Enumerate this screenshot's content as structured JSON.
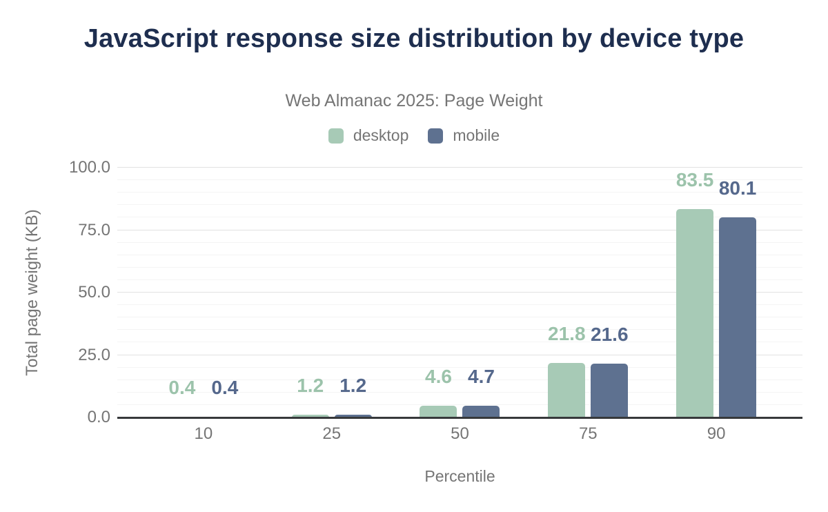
{
  "header": {
    "title": "JavaScript response size distribution by device type",
    "subtitle": "Web Almanac 2025: Page Weight"
  },
  "legend": [
    {
      "label": "desktop",
      "color": "#a7cab6"
    },
    {
      "label": "mobile",
      "color": "#5e7190"
    }
  ],
  "chart_data": {
    "type": "bar",
    "title": "JavaScript response size distribution by device type",
    "subtitle": "Web Almanac 2025: Page Weight",
    "categories": [
      "10",
      "25",
      "50",
      "75",
      "90"
    ],
    "series": [
      {
        "name": "desktop",
        "color": "#a7cab6",
        "label_color": "#9cc3ab",
        "values": [
          0.4,
          1.2,
          4.6,
          21.8,
          83.5
        ]
      },
      {
        "name": "mobile",
        "color": "#5e7190",
        "label_color": "#55688c",
        "values": [
          0.4,
          1.2,
          4.7,
          21.6,
          80.1
        ]
      }
    ],
    "xlabel": "Percentile",
    "ylabel": "Total page weight (KB)",
    "ylim": [
      0,
      100
    ],
    "y_ticks": [
      "0.0",
      "25.0",
      "50.0",
      "75.0",
      "100.0"
    ],
    "grid": {
      "minor_every": 5,
      "major_every": 25,
      "major_color": "#e2e2e2",
      "minor_color": "#f4f4f4"
    },
    "legend_position": "top",
    "value_decimals": 1
  },
  "colors": {
    "title": "#1e2e4f",
    "muted_text": "#757575",
    "axis_line": "#37393b",
    "background": "#ffffff"
  }
}
